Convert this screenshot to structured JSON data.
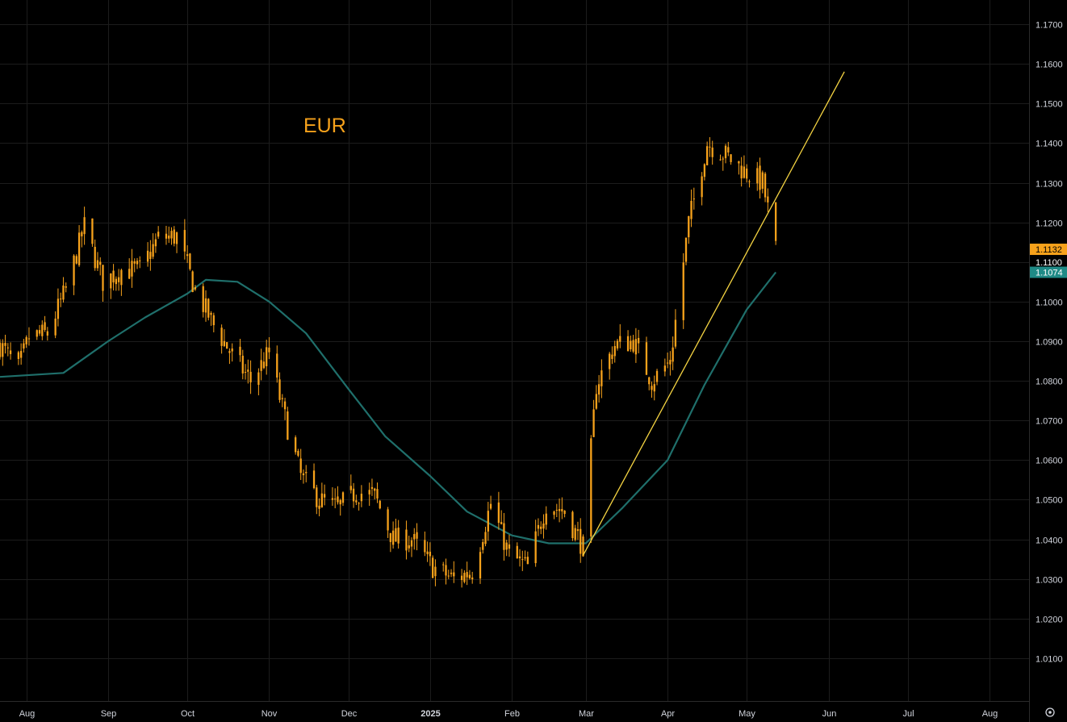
{
  "colors": {
    "background": "#000000",
    "grid": "#1c1c1c",
    "candle": "#f7a21b",
    "moving_average": "#1f6f6b",
    "trendline": "#f5d442",
    "title": "#f7a21b",
    "last_price_badge": "#f7a21b",
    "ma_badge": "#1f8a86",
    "axis_text": "#d1d4dc"
  },
  "chart_data": {
    "type": "candlestick",
    "title": "EUR",
    "ylim": [
      1.0,
      1.175
    ],
    "y_ticks": [
      "1.1700",
      "1.1600",
      "1.1500",
      "1.1400",
      "1.1300",
      "1.1200",
      "1.1100",
      "1.1000",
      "1.0900",
      "1.0800",
      "1.0700",
      "1.0600",
      "1.0500",
      "1.0400",
      "1.0300",
      "1.0200",
      "1.0100"
    ],
    "x_ticks": [
      "Aug",
      "Sep",
      "Oct",
      "Nov",
      "Dec",
      "2025",
      "Feb",
      "Mar",
      "Apr",
      "May",
      "Jun",
      "Jul",
      "Aug"
    ],
    "x_range": [
      "2024-07-22",
      "2025-08-16"
    ],
    "grid": true,
    "last_price": "1.1132",
    "moving_average_last": "1.1074",
    "price_level_label": "1.1100",
    "candles": [
      {
        "date": "2024-07-22",
        "close": 1.089
      },
      {
        "date": "2024-07-29",
        "close": 1.083
      },
      {
        "date": "2024-08-02",
        "close": 1.091
      },
      {
        "date": "2024-08-09",
        "close": 1.092
      },
      {
        "date": "2024-08-16",
        "close": 1.103
      },
      {
        "date": "2024-08-23",
        "close": 1.119
      },
      {
        "date": "2024-08-30",
        "close": 1.105
      },
      {
        "date": "2024-09-06",
        "close": 1.108
      },
      {
        "date": "2024-09-13",
        "close": 1.108
      },
      {
        "date": "2024-09-20",
        "close": 1.116
      },
      {
        "date": "2024-09-27",
        "close": 1.1165
      },
      {
        "date": "2024-10-04",
        "close": 1.103
      },
      {
        "date": "2024-10-11",
        "close": 1.094
      },
      {
        "date": "2024-10-18",
        "close": 1.0865
      },
      {
        "date": "2024-10-25",
        "close": 1.08
      },
      {
        "date": "2024-11-01",
        "close": 1.087
      },
      {
        "date": "2024-11-06",
        "close": 1.073
      },
      {
        "date": "2024-11-13",
        "close": 1.056
      },
      {
        "date": "2024-11-20",
        "close": 1.05
      },
      {
        "date": "2024-11-27",
        "close": 1.048
      },
      {
        "date": "2024-12-04",
        "close": 1.052
      },
      {
        "date": "2024-12-11",
        "close": 1.051
      },
      {
        "date": "2024-12-18",
        "close": 1.04
      },
      {
        "date": "2024-12-25",
        "close": 1.04
      },
      {
        "date": "2025-01-02",
        "close": 1.033
      },
      {
        "date": "2025-01-10",
        "close": 1.03
      },
      {
        "date": "2025-01-17",
        "close": 1.032
      },
      {
        "date": "2025-01-24",
        "close": 1.049
      },
      {
        "date": "2025-01-31",
        "close": 1.036
      },
      {
        "date": "2025-02-07",
        "close": 1.033
      },
      {
        "date": "2025-02-14",
        "close": 1.049
      },
      {
        "date": "2025-02-21",
        "close": 1.047
      },
      {
        "date": "2025-02-28",
        "close": 1.038
      },
      {
        "date": "2025-03-05",
        "close": 1.079
      },
      {
        "date": "2025-03-12",
        "close": 1.089
      },
      {
        "date": "2025-03-19",
        "close": 1.09
      },
      {
        "date": "2025-03-26",
        "close": 1.08
      },
      {
        "date": "2025-04-02",
        "close": 1.085
      },
      {
        "date": "2025-04-09",
        "close": 1.12
      },
      {
        "date": "2025-04-16",
        "close": 1.14
      },
      {
        "date": "2025-04-23",
        "close": 1.137
      },
      {
        "date": "2025-04-30",
        "close": 1.133
      },
      {
        "date": "2025-05-07",
        "close": 1.13
      },
      {
        "date": "2025-05-12",
        "close": 1.1132
      }
    ],
    "moving_average": [
      {
        "date": "2024-07-22",
        "value": 1.081
      },
      {
        "date": "2024-08-15",
        "value": 1.082
      },
      {
        "date": "2024-09-01",
        "value": 1.09
      },
      {
        "date": "2024-09-15",
        "value": 1.096
      },
      {
        "date": "2024-10-01",
        "value": 1.102
      },
      {
        "date": "2024-10-08",
        "value": 1.1055
      },
      {
        "date": "2024-10-20",
        "value": 1.105
      },
      {
        "date": "2024-11-01",
        "value": 1.1
      },
      {
        "date": "2024-11-15",
        "value": 1.092
      },
      {
        "date": "2024-12-01",
        "value": 1.078
      },
      {
        "date": "2024-12-15",
        "value": 1.066
      },
      {
        "date": "2025-01-01",
        "value": 1.056
      },
      {
        "date": "2025-01-15",
        "value": 1.047
      },
      {
        "date": "2025-02-01",
        "value": 1.041
      },
      {
        "date": "2025-02-15",
        "value": 1.039
      },
      {
        "date": "2025-03-01",
        "value": 1.039
      },
      {
        "date": "2025-03-15",
        "value": 1.048
      },
      {
        "date": "2025-04-01",
        "value": 1.06
      },
      {
        "date": "2025-04-15",
        "value": 1.079
      },
      {
        "date": "2025-05-01",
        "value": 1.098
      },
      {
        "date": "2025-05-12",
        "value": 1.1074
      }
    ],
    "trendline": [
      {
        "date": "2025-02-28",
        "value": 1.036
      },
      {
        "date": "2025-06-07",
        "value": 1.158
      }
    ]
  }
}
